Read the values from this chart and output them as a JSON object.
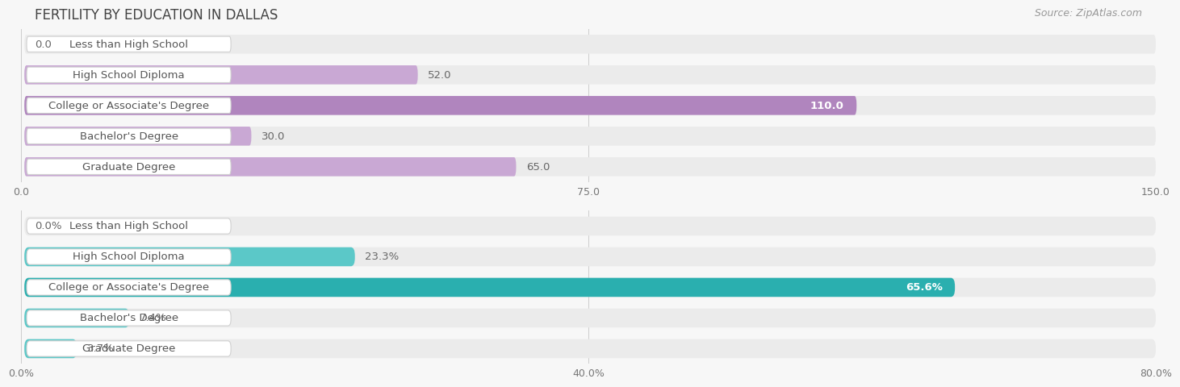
{
  "title": "FERTILITY BY EDUCATION IN DALLAS",
  "source": "Source: ZipAtlas.com",
  "top_chart": {
    "categories": [
      "Less than High School",
      "High School Diploma",
      "College or Associate's Degree",
      "Bachelor's Degree",
      "Graduate Degree"
    ],
    "values": [
      0.0,
      52.0,
      110.0,
      30.0,
      65.0
    ],
    "bar_color": "#c9a8d4",
    "highlight_color": "#b085be",
    "highlight_index": 2,
    "xlim": [
      0,
      150
    ],
    "xticks": [
      0.0,
      75.0,
      150.0
    ],
    "xtick_labels": [
      "0.0",
      "75.0",
      "150.0"
    ],
    "value_labels": [
      "0.0",
      "52.0",
      "110.0",
      "30.0",
      "65.0"
    ]
  },
  "bottom_chart": {
    "categories": [
      "Less than High School",
      "High School Diploma",
      "College or Associate's Degree",
      "Bachelor's Degree",
      "Graduate Degree"
    ],
    "values": [
      0.0,
      23.3,
      65.6,
      7.4,
      3.7
    ],
    "bar_color": "#5bc8c8",
    "highlight_color": "#2aafaf",
    "highlight_index": 2,
    "xlim": [
      0,
      80
    ],
    "xticks": [
      0.0,
      40.0,
      80.0
    ],
    "xtick_labels": [
      "0.0%",
      "40.0%",
      "80.0%"
    ],
    "value_labels": [
      "0.0%",
      "23.3%",
      "65.6%",
      "7.4%",
      "3.7%"
    ]
  },
  "bg_color": "#f7f7f7",
  "bar_bg_color": "#ebebeb",
  "label_bg_color": "#ffffff",
  "bar_height": 0.62,
  "label_fontsize": 9.5,
  "value_fontsize": 9.5,
  "title_fontsize": 12,
  "source_fontsize": 9
}
